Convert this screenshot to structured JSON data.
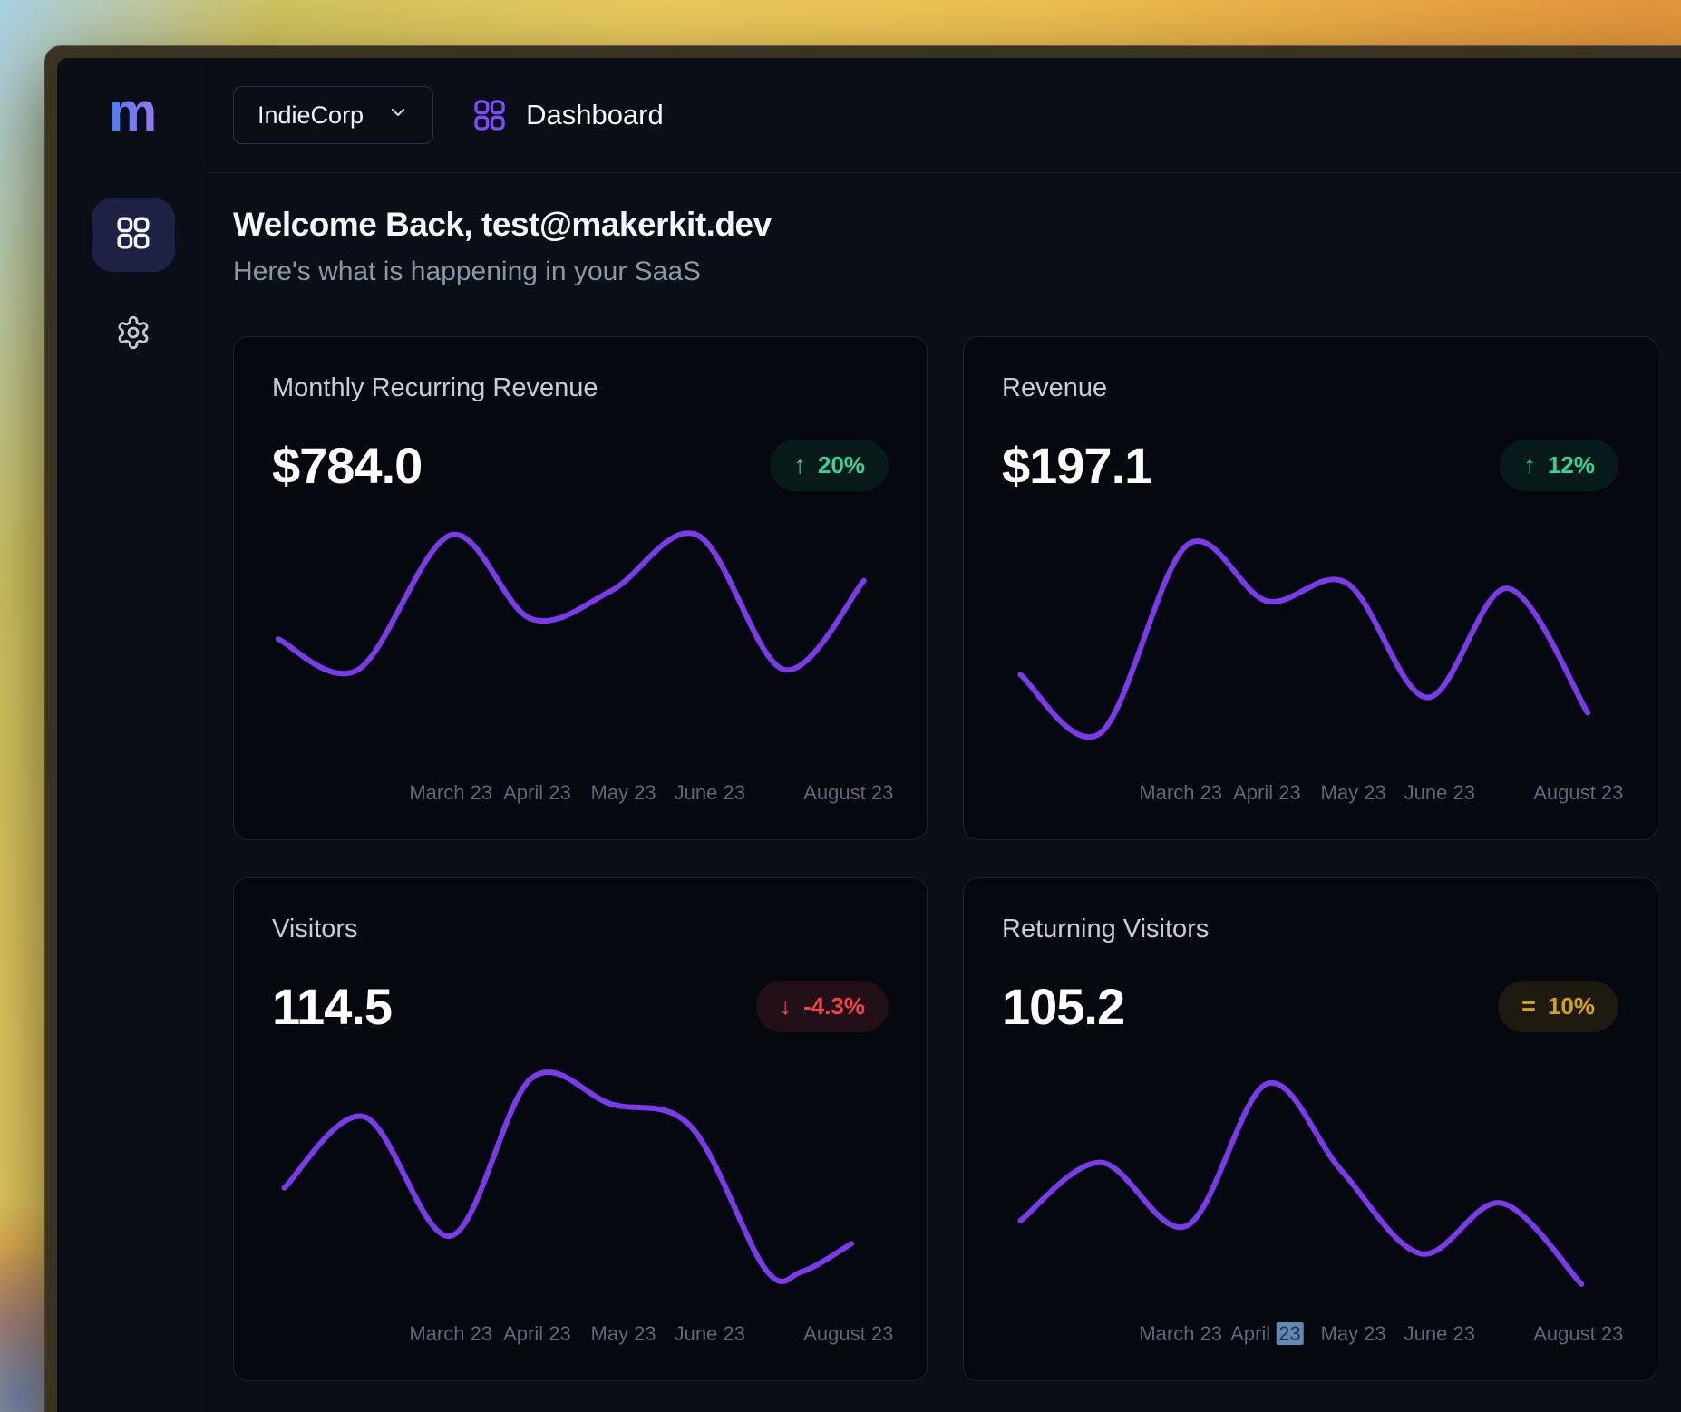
{
  "sidebar": {
    "logo": "m"
  },
  "topbar": {
    "team": "IndieCorp",
    "page": "Dashboard"
  },
  "header": {
    "title": "Welcome Back, test@makerkit.dev",
    "subtitle": "Here's what is happening in your SaaS"
  },
  "colors": {
    "accent_purple": "#7c3aed",
    "positive_green": "#34d399",
    "negative_red": "#ef4444",
    "neutral_yellow": "#d9a40a",
    "window_background": "#0a0e16",
    "card_background": "#05080f"
  },
  "cards": [
    {
      "title": "Monthly Recurring Revenue",
      "value": "$784.0",
      "trend": "up",
      "badge_icon": "↑",
      "badge_text": "20%",
      "chart_index": 0
    },
    {
      "title": "Revenue",
      "value": "$197.1",
      "trend": "up",
      "badge_icon": "↑",
      "badge_text": "12%",
      "chart_index": 1
    },
    {
      "title": "Visitors",
      "value": "114.5",
      "trend": "down",
      "badge_icon": "↓",
      "badge_text": "-4.3%",
      "chart_index": 2
    },
    {
      "title": "Returning Visitors",
      "value": "105.2",
      "trend": "flat",
      "badge_icon": "=",
      "badge_text": "10%",
      "chart_index": 3
    }
  ],
  "chart_data": [
    {
      "type": "line",
      "title": "Monthly Recurring Revenue",
      "color": "#7c3aed",
      "grid": false,
      "y_axis_labels_shown": false,
      "units": "percent of plot height (no numeric y-axis shown)",
      "ylim": [
        0,
        100
      ],
      "x_labels": [
        {
          "text": "March 23",
          "pos_pct": 29
        },
        {
          "text": "April 23",
          "pos_pct": 43
        },
        {
          "text": "May 23",
          "pos_pct": 57
        },
        {
          "text": "June 23",
          "pos_pct": 71
        },
        {
          "text": "August 23",
          "pos_pct": 93.5
        }
      ],
      "points": [
        [
          1,
          51
        ],
        [
          14,
          39
        ],
        [
          29,
          92
        ],
        [
          42,
          59
        ],
        [
          55,
          70
        ],
        [
          69,
          92
        ],
        [
          83,
          39
        ],
        [
          96,
          74
        ]
      ]
    },
    {
      "type": "line",
      "title": "Revenue",
      "color": "#7c3aed",
      "grid": false,
      "y_axis_labels_shown": false,
      "units": "percent of plot height (no numeric y-axis shown)",
      "ylim": [
        0,
        100
      ],
      "x_labels": [
        {
          "text": "March 23",
          "pos_pct": 29
        },
        {
          "text": "April 23",
          "pos_pct": 43
        },
        {
          "text": "May 23",
          "pos_pct": 57
        },
        {
          "text": "June 23",
          "pos_pct": 71
        },
        {
          "text": "August 23",
          "pos_pct": 93.5
        }
      ],
      "points": [
        [
          3,
          37
        ],
        [
          16,
          14
        ],
        [
          30,
          88
        ],
        [
          43,
          66
        ],
        [
          56,
          73
        ],
        [
          69,
          28
        ],
        [
          82,
          71
        ],
        [
          95,
          22
        ]
      ]
    },
    {
      "type": "line",
      "title": "Visitors",
      "color": "#7c3aed",
      "grid": false,
      "y_axis_labels_shown": false,
      "units": "percent of plot height (no numeric y-axis shown)",
      "ylim": [
        0,
        100
      ],
      "x_labels": [
        {
          "text": "March 23",
          "pos_pct": 29
        },
        {
          "text": "April 23",
          "pos_pct": 43
        },
        {
          "text": "May 23",
          "pos_pct": 57
        },
        {
          "text": "June 23",
          "pos_pct": 71
        },
        {
          "text": "August 23",
          "pos_pct": 93.5
        }
      ],
      "points": [
        [
          2,
          48
        ],
        [
          15,
          76
        ],
        [
          29,
          29
        ],
        [
          42,
          91
        ],
        [
          55,
          81
        ],
        [
          68,
          72
        ],
        [
          80,
          16
        ],
        [
          86,
          15
        ],
        [
          94,
          26
        ]
      ]
    },
    {
      "type": "line",
      "title": "Returning Visitors",
      "color": "#7c3aed",
      "grid": false,
      "y_axis_labels_shown": false,
      "units": "percent of plot height (no numeric y-axis shown)",
      "ylim": [
        0,
        100
      ],
      "x_labels": [
        {
          "text": "March 23",
          "pos_pct": 29
        },
        {
          "text": "April 23",
          "pos_pct": 43,
          "selected_text": "23"
        },
        {
          "text": "May 23",
          "pos_pct": 57
        },
        {
          "text": "June 23",
          "pos_pct": 71
        },
        {
          "text": "August 23",
          "pos_pct": 93.5
        }
      ],
      "points": [
        [
          3,
          35
        ],
        [
          16,
          58
        ],
        [
          30,
          33
        ],
        [
          43,
          89
        ],
        [
          55,
          55
        ],
        [
          68,
          22
        ],
        [
          81,
          42
        ],
        [
          94,
          10
        ]
      ]
    }
  ]
}
